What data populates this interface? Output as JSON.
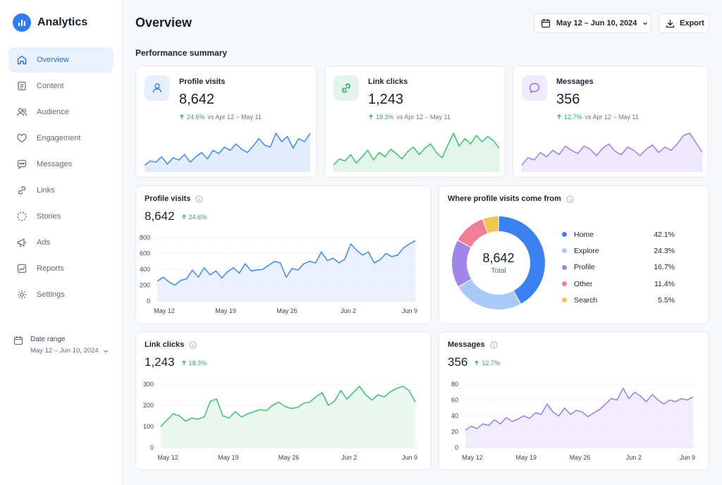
{
  "app": {
    "name": "Analytics"
  },
  "colors": {
    "accent": "#2f7bf0",
    "green": "#49c07a",
    "purple": "#9b87e8",
    "positive": "#2fa85c"
  },
  "sidebar": {
    "items": [
      {
        "label": "Overview",
        "icon": "home-icon",
        "active": true
      },
      {
        "label": "Content",
        "icon": "document-icon"
      },
      {
        "label": "Audience",
        "icon": "users-icon"
      },
      {
        "label": "Engagement",
        "icon": "heart-icon"
      },
      {
        "label": "Messages",
        "icon": "chat-icon"
      },
      {
        "label": "Links",
        "icon": "link-icon"
      },
      {
        "label": "Stories",
        "icon": "stories-icon"
      },
      {
        "label": "Ads",
        "icon": "megaphone-icon"
      },
      {
        "label": "Reports",
        "icon": "chart-icon"
      },
      {
        "label": "Settings",
        "icon": "gear-icon"
      }
    ],
    "date_range": {
      "title": "Date range",
      "value": "May 12 – Jun 10, 2024"
    }
  },
  "header": {
    "title": "Overview",
    "date_button": "May 12 – Jun 10, 2024",
    "export_button": "Export"
  },
  "summary": {
    "title": "Performance summary",
    "cards": [
      {
        "label": "Profile visits",
        "value": "8,642",
        "delta": "24.6%",
        "compare": "vs Apr 12 – May 11",
        "icon": "user-icon",
        "spark": [
          30,
          34,
          33,
          38,
          31,
          37,
          35,
          40,
          33,
          38,
          42,
          36,
          44,
          41,
          47,
          44,
          50,
          45,
          42,
          48,
          55,
          49,
          47,
          60,
          52,
          57,
          46,
          55,
          52,
          60
        ]
      },
      {
        "label": "Link clicks",
        "value": "1,243",
        "delta": "18.3%",
        "compare": "vs Apr 12 – May 11",
        "icon": "link-icon",
        "spark": [
          30,
          36,
          34,
          40,
          32,
          38,
          44,
          35,
          42,
          38,
          45,
          41,
          36,
          43,
          47,
          40,
          46,
          50,
          42,
          37,
          49,
          60,
          48,
          55,
          50,
          58,
          52,
          57,
          53,
          46
        ]
      },
      {
        "label": "Messages",
        "value": "356",
        "delta": "12.7%",
        "compare": "vs Apr 12 – May 11",
        "icon": "chat-icon",
        "spark": [
          30,
          37,
          35,
          42,
          38,
          44,
          40,
          48,
          44,
          41,
          48,
          45,
          39,
          46,
          50,
          43,
          40,
          47,
          44,
          39,
          45,
          49,
          42,
          47,
          44,
          50,
          58,
          60,
          51,
          42
        ]
      }
    ]
  },
  "charts": {
    "profile_visits": {
      "title": "Profile visits",
      "value": "8,642",
      "delta": "24.6%"
    },
    "link_clicks": {
      "title": "Link clicks",
      "value": "1,243",
      "delta": "18.3%"
    },
    "messages": {
      "title": "Messages",
      "value": "356",
      "delta": "12.7%"
    },
    "sources": {
      "title": "Where profile visits come from",
      "total_value": "8,642",
      "total_label": "Total"
    }
  },
  "chart_data": [
    {
      "type": "area",
      "ylim": [
        0,
        800
      ],
      "yticks": [
        0,
        200,
        400,
        600,
        800
      ],
      "xticks": [
        "May 12",
        "May 19",
        "May 26",
        "Jun 2",
        "Jun 9"
      ],
      "values": [
        250,
        300,
        240,
        200,
        260,
        280,
        390,
        300,
        420,
        330,
        380,
        290,
        370,
        420,
        350,
        470,
        380,
        390,
        400,
        450,
        500,
        480,
        300,
        410,
        390,
        470,
        500,
        480,
        620,
        510,
        540,
        480,
        530,
        720,
        640,
        580,
        620,
        480,
        520,
        600,
        560,
        580,
        670,
        720,
        760
      ],
      "series": [
        {
          "values": [
            250,
            300,
            240,
            200,
            260,
            280,
            390,
            300,
            420,
            330,
            380,
            290,
            370,
            420,
            350,
            470,
            380,
            390,
            400,
            450,
            500,
            480,
            300,
            410,
            390,
            470,
            500,
            480,
            620,
            510,
            540,
            480,
            530,
            720,
            640,
            580,
            620,
            480,
            520,
            600,
            560,
            580,
            670,
            720,
            760
          ]
        }
      ]
    },
    {
      "type": "pie",
      "categories": [
        "Home",
        "Explore",
        "Profile",
        "Other",
        "Search"
      ],
      "values": [
        42.1,
        24.3,
        16.7,
        11.4,
        5.5
      ],
      "labels": [
        "42.1%",
        "24.3%",
        "16.7%",
        "11.4%",
        "5.5%"
      ],
      "colors": [
        "#3b82f0",
        "#a9c9f7",
        "#a186ea",
        "#ee7f95",
        "#f3c54e"
      ]
    },
    {
      "type": "area",
      "ylim": [
        0,
        300
      ],
      "yticks": [
        0,
        100,
        200,
        300
      ],
      "xticks": [
        "May 12",
        "May 19",
        "May 26",
        "Jun 2",
        "Jun 9"
      ],
      "values": [
        100,
        130,
        160,
        150,
        125,
        140,
        135,
        145,
        220,
        230,
        150,
        140,
        170,
        145,
        160,
        170,
        180,
        175,
        200,
        215,
        195,
        185,
        190,
        210,
        215,
        240,
        260,
        200,
        220,
        270,
        230,
        260,
        290,
        250,
        225,
        250,
        240,
        265,
        280,
        290,
        270,
        215
      ],
      "series": [
        {
          "values": [
            100,
            130,
            160,
            150,
            125,
            140,
            135,
            145,
            220,
            230,
            150,
            140,
            170,
            145,
            160,
            170,
            180,
            175,
            200,
            215,
            195,
            185,
            190,
            210,
            215,
            240,
            260,
            200,
            220,
            270,
            230,
            260,
            290,
            250,
            225,
            250,
            240,
            265,
            280,
            290,
            270,
            215
          ]
        }
      ]
    },
    {
      "type": "area",
      "ylim": [
        0,
        80
      ],
      "yticks": [
        0,
        20,
        40,
        60,
        80
      ],
      "xticks": [
        "May 12",
        "May 19",
        "May 26",
        "Jun 2",
        "Jun 9"
      ],
      "values": [
        22,
        27,
        24,
        30,
        28,
        35,
        30,
        38,
        33,
        36,
        40,
        37,
        44,
        42,
        55,
        45,
        40,
        50,
        42,
        47,
        45,
        39,
        44,
        48,
        55,
        62,
        60,
        75,
        62,
        70,
        65,
        58,
        67,
        60,
        55,
        60,
        58,
        62,
        60,
        64
      ],
      "series": [
        {
          "values": [
            22,
            27,
            24,
            30,
            28,
            35,
            30,
            38,
            33,
            36,
            40,
            37,
            44,
            42,
            55,
            45,
            40,
            50,
            42,
            47,
            45,
            39,
            44,
            48,
            55,
            62,
            60,
            75,
            62,
            70,
            65,
            58,
            67,
            60,
            55,
            60,
            58,
            62,
            60,
            64
          ]
        }
      ]
    }
  ]
}
